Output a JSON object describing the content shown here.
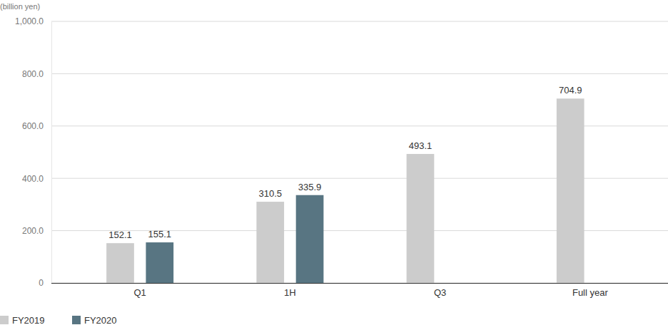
{
  "chart_data": {
    "type": "bar",
    "y_label": "(billion yen)",
    "categories": [
      "Q1",
      "1H",
      "Q3",
      "Full year"
    ],
    "series": [
      {
        "name": "FY2019",
        "color": "#cccccc",
        "values": [
          152.1,
          310.5,
          493.1,
          704.9
        ]
      },
      {
        "name": "FY2020",
        "color": "#587582",
        "values": [
          155.1,
          335.9,
          null,
          null
        ]
      }
    ],
    "ylim": [
      0,
      1000
    ],
    "yticks": [
      0,
      {
        "value": 200,
        "label": "200.0"
      },
      {
        "value": 400,
        "label": "400.0"
      },
      {
        "value": 600,
        "label": "600.0"
      },
      {
        "value": 800,
        "label": "800.0"
      },
      {
        "value": 1000,
        "label": "1,000.0"
      }
    ],
    "grid": true,
    "legend": "bottom-left",
    "data_labels": true
  }
}
